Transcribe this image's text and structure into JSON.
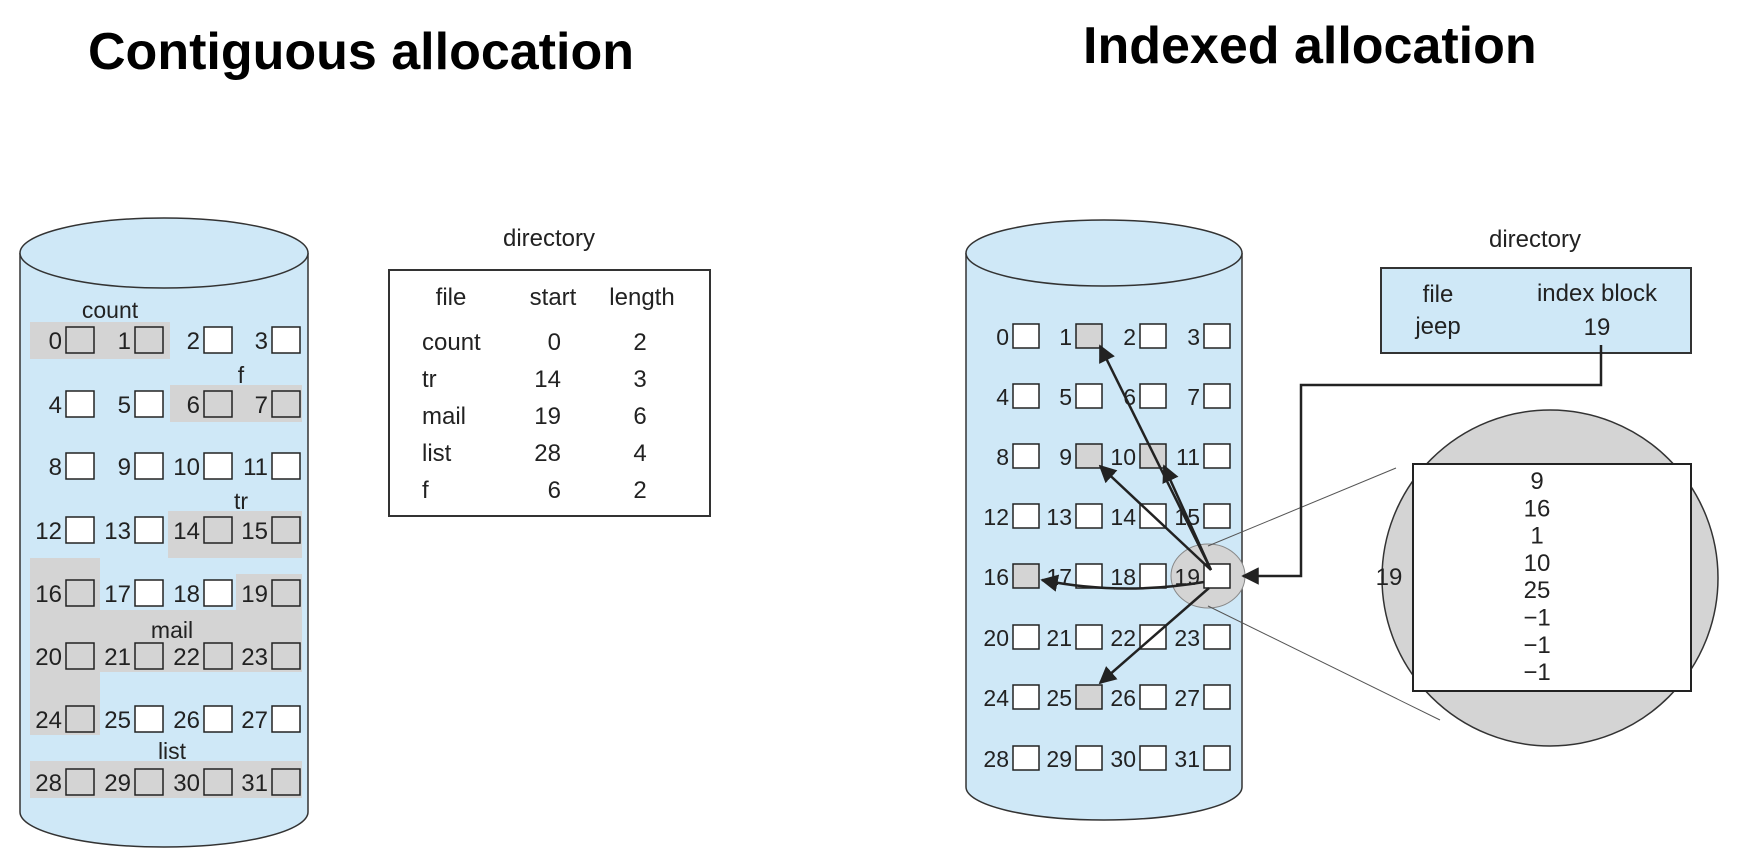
{
  "contiguous": {
    "title": "Contiguous allocation",
    "directory_title": "directory",
    "headers": [
      "file",
      "start",
      "length"
    ],
    "rows": [
      {
        "file": "count",
        "start": "0",
        "length": "2"
      },
      {
        "file": "tr",
        "start": "14",
        "length": "3"
      },
      {
        "file": "mail",
        "start": "19",
        "length": "6"
      },
      {
        "file": "list",
        "start": "28",
        "length": "4"
      },
      {
        "file": "f",
        "start": "6",
        "length": "2"
      }
    ],
    "file_labels": [
      "count",
      "f",
      "tr",
      "mail",
      "list"
    ],
    "block_count": 32,
    "allocated_blocks": [
      0,
      1,
      6,
      7,
      14,
      15,
      16,
      19,
      20,
      21,
      22,
      23,
      24,
      28,
      29,
      30,
      31
    ]
  },
  "indexed": {
    "title": "Indexed allocation",
    "directory_title": "directory",
    "headers": [
      "file",
      "index block"
    ],
    "row": {
      "file": "jeep",
      "index_block": "19"
    },
    "block_count": 32,
    "allocated_blocks": [
      1,
      9,
      10,
      16,
      25
    ],
    "index_block_number": "19",
    "index_entries": [
      "9",
      "16",
      "1",
      "10",
      "25",
      "−1",
      "−1",
      "−1"
    ],
    "pointer_targets": [
      9,
      16,
      1,
      10,
      25
    ]
  },
  "colors": {
    "disk_fill": "#cfe8f7",
    "allocated_fill": "#d4d4d4",
    "magnifier_fill": "#d4d4d4",
    "directory_fill_indexed": "#cfe8f7",
    "stroke": "#333333"
  }
}
